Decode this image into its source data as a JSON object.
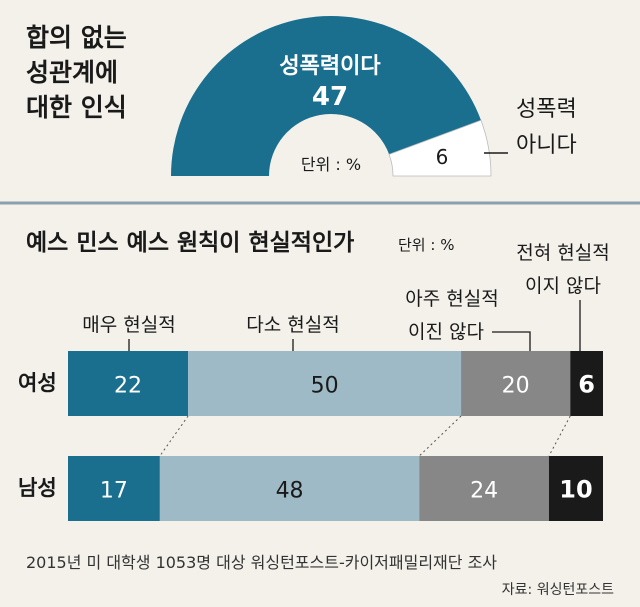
{
  "chart_data": [
    {
      "type": "pie",
      "title": "합의 없는 성관계에 대한 인식",
      "title_lines": [
        "합의 없는",
        "성관계에",
        "대한 인식"
      ],
      "unit": "단위 : %",
      "slices": [
        {
          "label": "성폭력이다",
          "value": 47,
          "color": "#1a6f8f"
        },
        {
          "label": "성폭력 아니다",
          "value": 6,
          "color": "#ffffff"
        }
      ],
      "label_lines_no": [
        "성폭력",
        "아니다"
      ]
    },
    {
      "type": "bar",
      "stacked": true,
      "orientation": "horizontal",
      "title": "예스 민스 예스 원칙이 현실적인가",
      "unit": "단위 : %",
      "categories": [
        "여성",
        "남성"
      ],
      "series": [
        {
          "name": "매우 현실적",
          "values": [
            22,
            17
          ],
          "color": "#1a6f8f"
        },
        {
          "name": "다소 현실적",
          "values": [
            50,
            48
          ],
          "color": "#9dbac6"
        },
        {
          "name": "아주 현실적 이진 않다",
          "values": [
            20,
            24
          ],
          "color": "#878787"
        },
        {
          "name": "전혀 현실적 이지 않다",
          "values": [
            6,
            10
          ],
          "color": "#1a1a1a"
        }
      ],
      "legend_lines": [
        [
          "매우 현실적"
        ],
        [
          "다소 현실적"
        ],
        [
          "아주 현실적",
          "이진 않다"
        ],
        [
          "전혀 현실적",
          "이지 않다"
        ]
      ]
    }
  ],
  "footer": {
    "note": "2015년 미 대학생 1053명 대상 워싱턴포스트-카이저패밀리재단 조사",
    "source": "자료: 워싱턴포스트"
  },
  "colors": {
    "background": "#f3f1ea",
    "divider": "#8aa1ad",
    "accent": "#1a6f8f"
  }
}
